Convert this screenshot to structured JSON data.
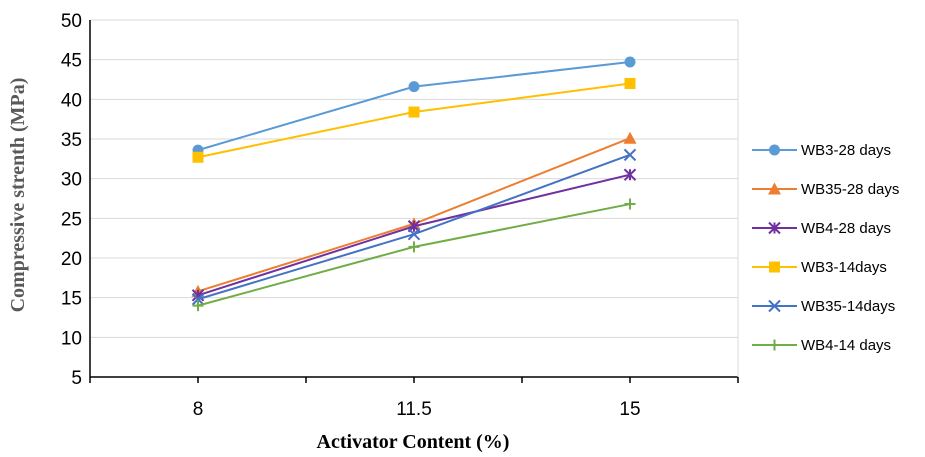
{
  "chart_data": {
    "type": "line",
    "title": "",
    "xlabel": "Activator Content (%)",
    "ylabel": "Compressive strenth (MPa)",
    "categories": [
      "8",
      "11.5",
      "15"
    ],
    "ylim": [
      5,
      50
    ],
    "yticks": [
      5,
      10,
      15,
      20,
      25,
      30,
      35,
      40,
      45,
      50
    ],
    "grid": "horizontal",
    "legend": "right",
    "series": [
      {
        "name": "WB3-28 days",
        "color": "#5B9BD5",
        "marker": "circle",
        "values": [
          33.6,
          41.6,
          44.7
        ]
      },
      {
        "name": "WB35-28 days",
        "color": "#ED7D31",
        "marker": "triangle",
        "values": [
          15.8,
          24.3,
          35.1
        ]
      },
      {
        "name": "WB4-28 days",
        "color": "#7030A0",
        "marker": "asterisk",
        "values": [
          15.3,
          24.0,
          30.5
        ]
      },
      {
        "name": "WB3-14days",
        "color": "#FFC000",
        "marker": "square",
        "values": [
          32.7,
          38.4,
          42.0
        ]
      },
      {
        "name": "WB35-14days",
        "color": "#4472C4",
        "marker": "x",
        "values": [
          14.8,
          23.0,
          33.0
        ]
      },
      {
        "name": "WB4-14 days",
        "color": "#70AD47",
        "marker": "plus",
        "values": [
          14.0,
          21.4,
          26.8
        ]
      }
    ]
  }
}
